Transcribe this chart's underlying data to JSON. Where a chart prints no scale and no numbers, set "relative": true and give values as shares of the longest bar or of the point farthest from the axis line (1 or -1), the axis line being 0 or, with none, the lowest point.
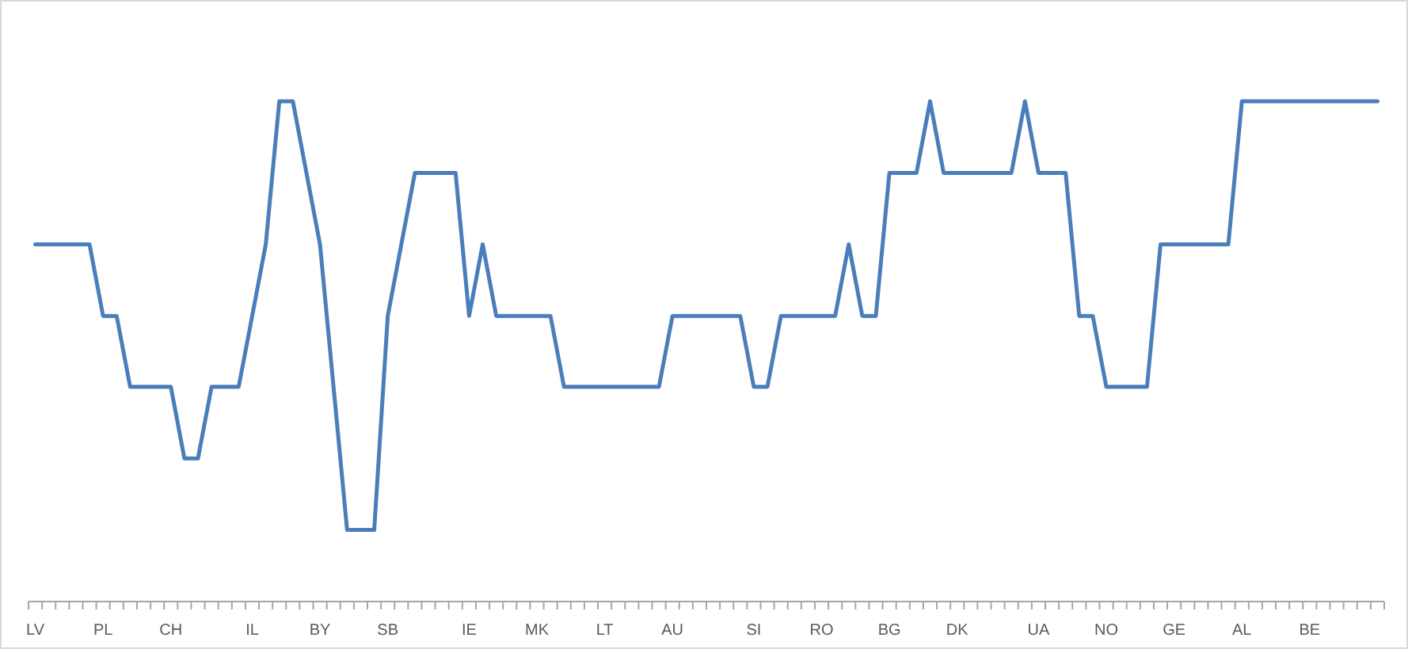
{
  "chart_data": {
    "type": "line",
    "relative": true,
    "marker": "none",
    "line_style": "solid",
    "categories": [
      "LV",
      null,
      null,
      null,
      null,
      "PL",
      null,
      null,
      null,
      null,
      "CH",
      null,
      null,
      null,
      null,
      null,
      "IL",
      null,
      null,
      null,
      null,
      "BY",
      null,
      null,
      null,
      null,
      "SB",
      null,
      null,
      null,
      null,
      null,
      "IE",
      null,
      null,
      null,
      null,
      "MK",
      null,
      null,
      null,
      null,
      "LT",
      null,
      null,
      null,
      null,
      "AU",
      null,
      null,
      null,
      null,
      null,
      "SI",
      null,
      null,
      null,
      null,
      "RO",
      null,
      null,
      null,
      null,
      "BG",
      null,
      null,
      null,
      null,
      "DK",
      null,
      null,
      null,
      null,
      null,
      "UA",
      null,
      null,
      null,
      null,
      "NO",
      null,
      null,
      null,
      null,
      "GE",
      null,
      null,
      null,
      null,
      "AL",
      null,
      null,
      null,
      null,
      "BE",
      null,
      null,
      null,
      null,
      null
    ],
    "series": [
      {
        "color": "#4a7ebb",
        "values": [
          0.714,
          0.714,
          0.714,
          0.714,
          0.714,
          0.571,
          0.571,
          0.429,
          0.429,
          0.429,
          0.429,
          0.286,
          0.286,
          0.429,
          0.429,
          0.429,
          0.571,
          0.714,
          1,
          1,
          0.857,
          0.714,
          0.429,
          0.143,
          0.143,
          0.143,
          0.571,
          0.714,
          0.857,
          0.857,
          0.857,
          0.857,
          0.571,
          0.714,
          0.571,
          0.571,
          0.571,
          0.571,
          0.571,
          0.429,
          0.429,
          0.429,
          0.429,
          0.429,
          0.429,
          0.429,
          0.429,
          0.571,
          0.571,
          0.571,
          0.571,
          0.571,
          0.571,
          0.429,
          0.429,
          0.571,
          0.571,
          0.571,
          0.571,
          0.571,
          0.714,
          0.571,
          0.571,
          0.857,
          0.857,
          0.857,
          1,
          0.857,
          0.857,
          0.857,
          0.857,
          0.857,
          0.857,
          1,
          0.857,
          0.857,
          0.857,
          0.571,
          0.571,
          0.429,
          0.429,
          0.429,
          0.429,
          0.714,
          0.714,
          0.714,
          0.714,
          0.714,
          0.714,
          1,
          1,
          1,
          1,
          1,
          1,
          1,
          1,
          1,
          1,
          1
        ]
      }
    ]
  }
}
